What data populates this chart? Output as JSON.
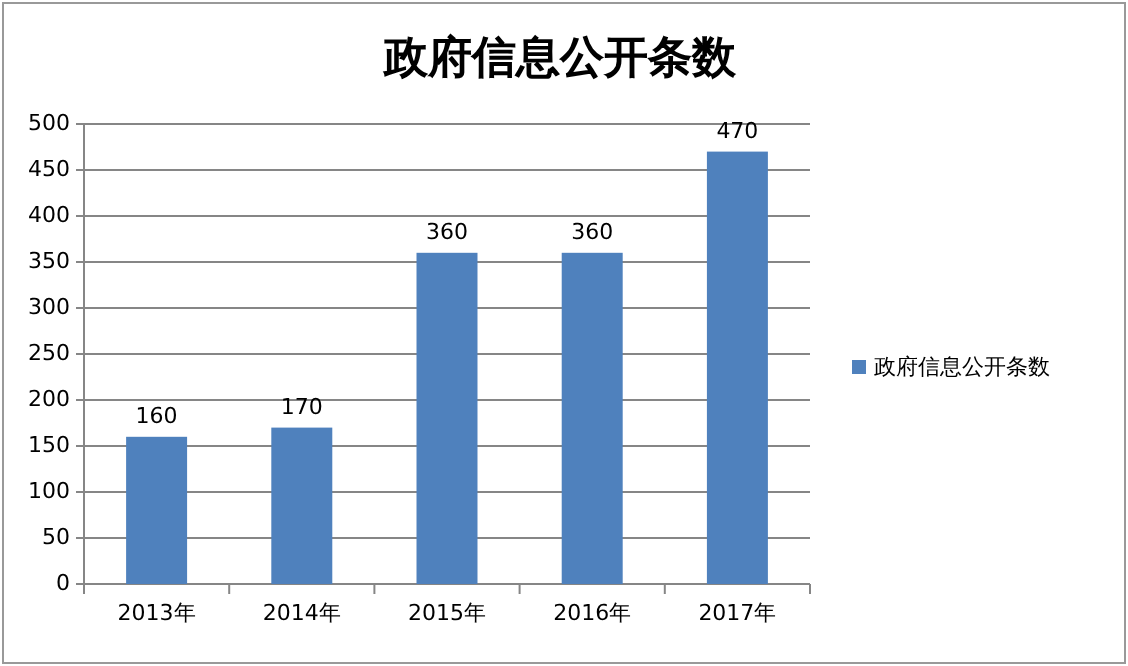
{
  "chart_data": {
    "type": "bar",
    "title": "政府信息公开条数",
    "categories": [
      "2013年",
      "2014年",
      "2015年",
      "2016年",
      "2017年"
    ],
    "series": [
      {
        "name": "政府信息公开条数",
        "color": "#4f81bd",
        "values": [
          160,
          170,
          360,
          360,
          470
        ]
      }
    ],
    "ylim": [
      0,
      500
    ],
    "yticks": [
      0,
      50,
      100,
      150,
      200,
      250,
      300,
      350,
      400,
      450,
      500
    ],
    "grid": "y",
    "legend": "right",
    "data_labels": true
  }
}
